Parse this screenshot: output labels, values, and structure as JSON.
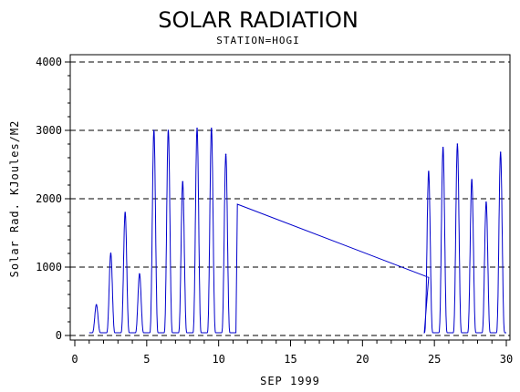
{
  "chart_data": {
    "type": "line",
    "title": "SOLAR RADIATION",
    "subtitle": "STATION=HOGI",
    "xlabel": "SEP 1999",
    "ylabel": "Solar Rad. KJoules/M2",
    "xlim": [
      0,
      30
    ],
    "ylim": [
      0,
      4000
    ],
    "xticks": [
      0,
      5,
      10,
      15,
      20,
      25,
      30
    ],
    "yticks": [
      0,
      1000,
      2000,
      3000,
      4000
    ],
    "grid": "horizontal dashed at y ticks",
    "series_color": "#0000cc",
    "daily_peaks": [
      {
        "day": 1,
        "peak": 450
      },
      {
        "day": 2,
        "peak": 1200
      },
      {
        "day": 3,
        "peak": 1800
      },
      {
        "day": 4,
        "peak": 900
      },
      {
        "day": 5,
        "peak": 3000
      },
      {
        "day": 6,
        "peak": 3000
      },
      {
        "day": 7,
        "peak": 2250
      },
      {
        "day": 8,
        "peak": 3030
      },
      {
        "day": 9,
        "peak": 3030
      },
      {
        "day": 10,
        "peak": 2650
      },
      {
        "day": 24,
        "peak": 2400
      },
      {
        "day": 25,
        "peak": 2750
      },
      {
        "day": 26,
        "peak": 2800
      },
      {
        "day": 27,
        "peak": 2280
      },
      {
        "day": 28,
        "peak": 1950
      },
      {
        "day": 29,
        "peak": 2680
      }
    ],
    "gap_segment": {
      "start": [
        11.3,
        1920
      ],
      "end": [
        24.6,
        850
      ]
    }
  }
}
